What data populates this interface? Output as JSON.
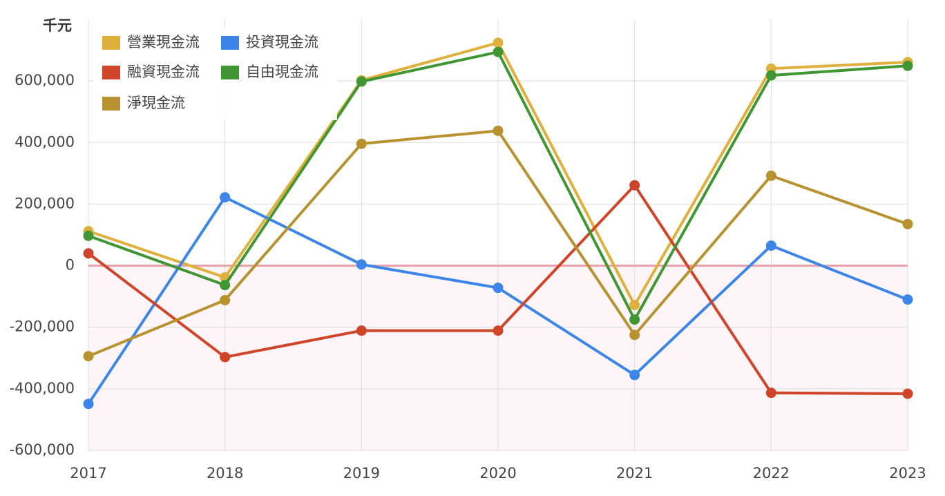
{
  "chart_data": {
    "type": "line",
    "unit_label": "千元",
    "categories": [
      "2017",
      "2018",
      "2019",
      "2020",
      "2021",
      "2022",
      "2023"
    ],
    "series": [
      {
        "name": "營業現金流",
        "color": "#e0b03c",
        "values": [
          112000,
          -38000,
          602000,
          724000,
          -128000,
          640000,
          661000
        ]
      },
      {
        "name": "投資現金流",
        "color": "#3b86e8",
        "values": [
          -449000,
          222000,
          4000,
          -72000,
          -355000,
          65000,
          -110000
        ]
      },
      {
        "name": "融資現金流",
        "color": "#d04428",
        "values": [
          40000,
          -297000,
          -211000,
          -211000,
          261000,
          -413000,
          -416000
        ]
      },
      {
        "name": "自由現金流",
        "color": "#3f9633",
        "values": [
          97000,
          -63000,
          598000,
          694000,
          -175000,
          618000,
          649000
        ]
      },
      {
        "name": "淨現金流",
        "color": "#b8922e",
        "values": [
          -294000,
          -112000,
          396000,
          438000,
          -225000,
          292000,
          135000
        ]
      }
    ],
    "ylim": [
      -600000,
      800000
    ],
    "yticks": [
      {
        "value": -600000,
        "label": "-600,000"
      },
      {
        "value": -400000,
        "label": "-400,000"
      },
      {
        "value": -200000,
        "label": "-200,000"
      },
      0,
      {
        "value": 200000,
        "label": "200,000"
      },
      {
        "value": 400000,
        "label": "400,000"
      },
      {
        "value": 600000,
        "label": "600,000"
      }
    ],
    "grid": true
  }
}
